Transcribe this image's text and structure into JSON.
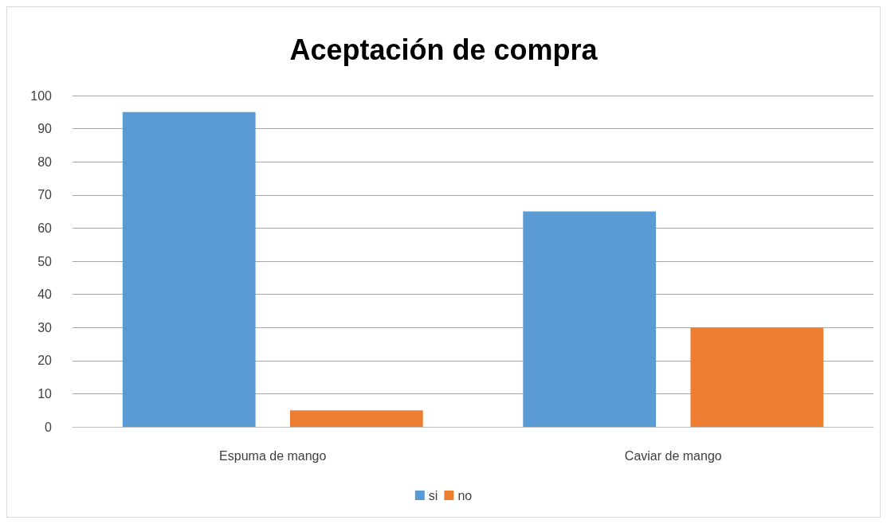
{
  "chart_data": {
    "type": "bar",
    "title": "Aceptación de compra",
    "categories": [
      "Espuma de mango",
      "Caviar de mango"
    ],
    "series": [
      {
        "name": "si",
        "color": "#5b9bd5",
        "values": [
          95,
          65
        ]
      },
      {
        "name": "no",
        "color": "#ed7d31",
        "values": [
          5,
          30
        ]
      }
    ],
    "ylim": [
      0,
      100
    ],
    "yticks": [
      0,
      10,
      20,
      30,
      40,
      50,
      60,
      70,
      80,
      90,
      100
    ],
    "grid": "y",
    "legend": "bottom"
  }
}
